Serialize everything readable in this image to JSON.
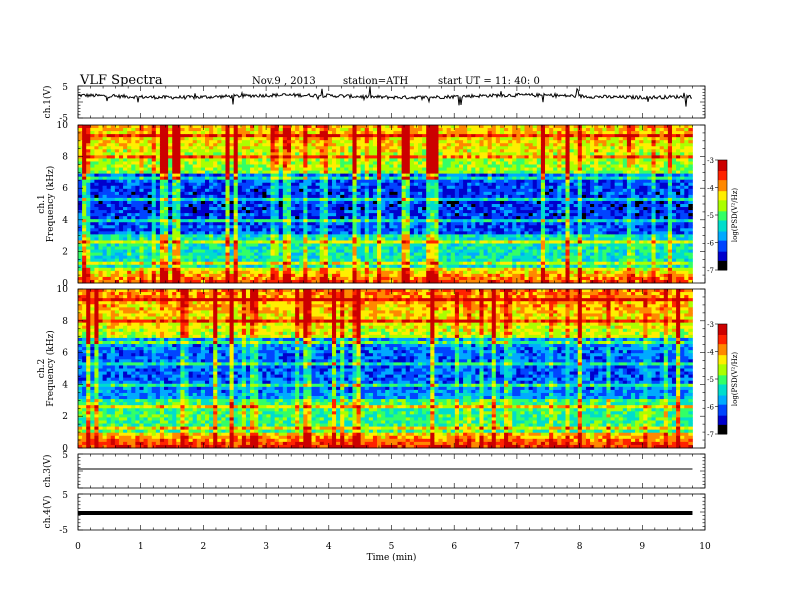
{
  "header": {
    "title": "VLF  Spectra",
    "date": "Nov.9  , 2013",
    "station": "station=ATH",
    "start": "start  UT  =   11: 40: 0"
  },
  "chart_data": [
    {
      "type": "line",
      "title": "",
      "ylabel": "ch.1(V)",
      "ylim": [
        -5,
        5
      ],
      "yticks": [
        "5",
        "-5"
      ],
      "color": "#000000",
      "description_level": 1.8,
      "x_range": [
        0,
        9.8
      ]
    },
    {
      "type": "heatmap",
      "ylabel": "ch.1\nFrequency (kHz)",
      "ylabel_lines": [
        "ch.1",
        "Frequency  (kHz)"
      ],
      "ylim": [
        0,
        10
      ],
      "yticks": [
        "0",
        "2",
        "4",
        "6",
        "8",
        "10"
      ],
      "x_range": [
        0,
        9.8
      ],
      "colorbar": {
        "label": "log(PSD(V²/Hz)",
        "range": [
          -7,
          -3
        ],
        "ticks": [
          "-3",
          "-4",
          "-5",
          "-6",
          "-7"
        ]
      }
    },
    {
      "type": "heatmap",
      "ylabel": "ch.2\nFrequency (kHz)",
      "ylabel_lines": [
        "ch.2",
        "Frequency  (kHz)"
      ],
      "ylim": [
        0,
        10
      ],
      "yticks": [
        "0",
        "2",
        "4",
        "6",
        "8",
        "10"
      ],
      "x_range": [
        0,
        9.8
      ],
      "colorbar": {
        "label": "log(PSD(V²/Hz)",
        "range": [
          -7,
          -3
        ],
        "ticks": [
          "-3",
          "-4",
          "-5",
          "-6",
          "-7"
        ]
      }
    },
    {
      "type": "line",
      "ylabel": "ch.3(V)",
      "ylim": [
        -5,
        5
      ],
      "yticks": [
        "5"
      ],
      "color": "#000000",
      "level": 0,
      "x_range": [
        0,
        9.8
      ]
    },
    {
      "type": "line",
      "ylabel": "ch.4(V)",
      "ylim": [
        -5,
        5
      ],
      "yticks": [
        "5",
        "-5"
      ],
      "color": "#000000",
      "level": 0,
      "x_range": [
        0,
        9.8
      ]
    }
  ],
  "xaxis": {
    "label": "Time  (min)",
    "ticks": [
      "0",
      "1",
      "2",
      "3",
      "4",
      "5",
      "6",
      "7",
      "8",
      "9",
      "10"
    ],
    "range": [
      0,
      10
    ]
  },
  "colormap": [
    "#000000",
    "#0000cc",
    "#0044ff",
    "#00aaff",
    "#00ddcc",
    "#33ff66",
    "#aaff00",
    "#ffee00",
    "#ff8800",
    "#ff2200",
    "#cc0000",
    "#ffffff"
  ]
}
